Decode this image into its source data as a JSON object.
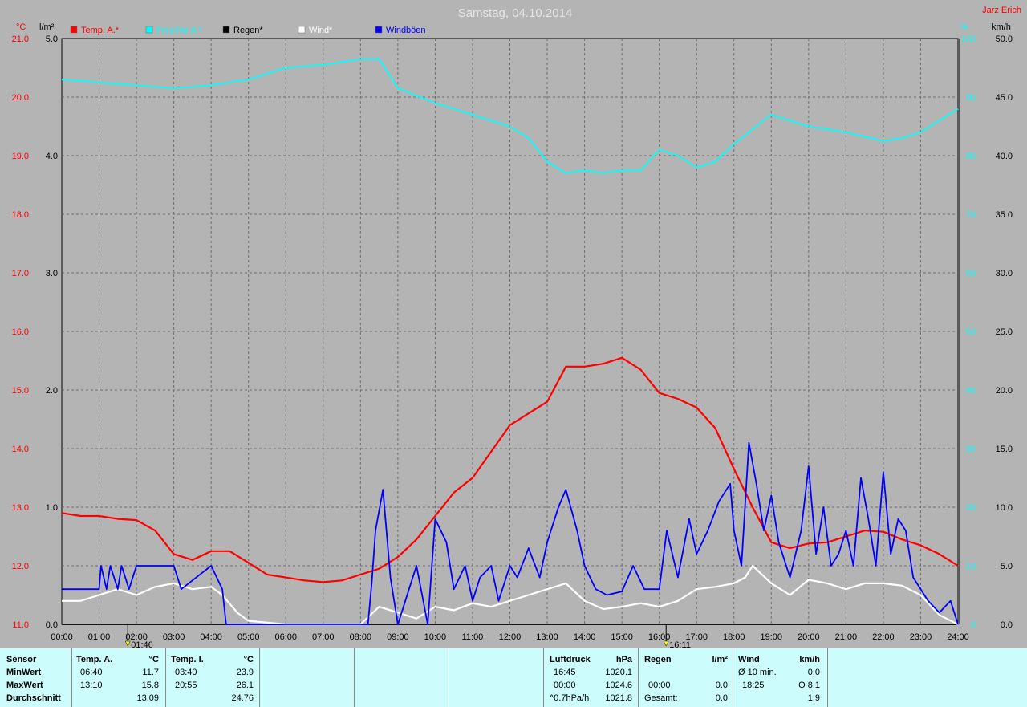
{
  "title": "Samstag, 04.10.2014",
  "author": "Jarz Erich",
  "axes": {
    "temp_unit": "°C",
    "rain_unit": "l/m²",
    "humidity_unit": "%",
    "wind_unit": "km/h",
    "temp_ticks": [
      "21.0",
      "20.0",
      "19.0",
      "18.0",
      "17.0",
      "16.0",
      "15.0",
      "14.0",
      "13.0",
      "12.0",
      "11.0"
    ],
    "rain_ticks": [
      "5.0",
      "4.0",
      "3.0",
      "2.0",
      "1.0",
      "0.0"
    ],
    "humidity_ticks": [
      "100",
      "90",
      "80",
      "70",
      "60",
      "50",
      "40",
      "30",
      "20",
      "10",
      "0"
    ],
    "wind_ticks": [
      "50.0",
      "45.0",
      "40.0",
      "35.0",
      "30.0",
      "25.0",
      "20.0",
      "15.0",
      "10.0",
      "5.0",
      "0.0"
    ],
    "time_ticks": [
      "00:00",
      "01:00",
      "02:00",
      "03:00",
      "04:00",
      "05:00",
      "06:00",
      "07:00",
      "08:00",
      "09:00",
      "10:00",
      "11:00",
      "12:00",
      "13:00",
      "14:00",
      "15:00",
      "16:00",
      "17:00",
      "18:00",
      "19:00",
      "20:00",
      "21:00",
      "22:00",
      "23:00",
      "24:00"
    ],
    "markers": [
      {
        "time": "01:46"
      },
      {
        "time": "16:11"
      }
    ]
  },
  "legend": [
    {
      "label": "Temp. A.*",
      "color": "#ff0000"
    },
    {
      "label": "Feuchte A.*",
      "color": "#00ffff"
    },
    {
      "label": "Regen*",
      "color": "#000000"
    },
    {
      "label": "Wind*",
      "color": "#ffffff"
    },
    {
      "label": "Windböen",
      "color": "#0000ff"
    }
  ],
  "chart_data": {
    "type": "line",
    "title": "Samstag, 04.10.2014",
    "x_range_hours": [
      0,
      24
    ],
    "ylim_temp": [
      11,
      21
    ],
    "ylim_rain": [
      0,
      5
    ],
    "ylim_humidity": [
      0,
      100
    ],
    "ylim_wind": [
      0,
      50
    ],
    "grid": true,
    "legend_position": "top",
    "series": [
      {
        "name": "Temp. A.*",
        "color": "#ff0000",
        "axis": "temp",
        "x": [
          0,
          0.5,
          1,
          1.5,
          2,
          2.5,
          3,
          3.5,
          4,
          4.5,
          5,
          5.5,
          6,
          6.5,
          7,
          7.5,
          8,
          8.5,
          9,
          9.5,
          10,
          10.5,
          11,
          11.5,
          12,
          12.5,
          13,
          13.5,
          14,
          14.5,
          15,
          15.5,
          16,
          16.5,
          17,
          17.5,
          18,
          18.5,
          19,
          19.5,
          20,
          20.5,
          21,
          21.5,
          22,
          22.5,
          23,
          23.5,
          24
        ],
        "y": [
          12.9,
          12.85,
          12.85,
          12.8,
          12.78,
          12.6,
          12.2,
          12.1,
          12.25,
          12.25,
          12.05,
          11.85,
          11.8,
          11.75,
          11.72,
          11.75,
          11.85,
          11.95,
          12.15,
          12.45,
          12.85,
          13.25,
          13.5,
          13.95,
          14.4,
          14.6,
          14.8,
          15.4,
          15.4,
          15.45,
          15.55,
          15.35,
          14.95,
          14.85,
          14.7,
          14.35,
          13.65,
          13.0,
          12.4,
          12.3,
          12.38,
          12.4,
          12.5,
          12.6,
          12.58,
          12.45,
          12.35,
          12.2,
          12.0
        ]
      },
      {
        "name": "Feuchte A.*",
        "color": "#00ffff",
        "axis": "humidity",
        "x": [
          0,
          1,
          2,
          3,
          4,
          5,
          6,
          7,
          8,
          8.5,
          9,
          10,
          11,
          12,
          12.5,
          13,
          13.5,
          14,
          14.5,
          15,
          15.5,
          16,
          16.5,
          17,
          17.5,
          18,
          19,
          20,
          21,
          22,
          22.5,
          23,
          24
        ],
        "y": [
          93,
          92.5,
          92,
          91.5,
          92,
          93,
          95,
          95.5,
          96.5,
          96.5,
          91.5,
          89,
          87,
          85,
          83,
          79,
          77,
          77.5,
          77,
          77.5,
          77.5,
          81,
          80,
          78,
          79,
          82,
          87,
          85,
          84,
          82.5,
          83,
          84,
          88
        ]
      },
      {
        "name": "Regen*",
        "color": "#000000",
        "axis": "rain",
        "x": [
          0,
          24
        ],
        "y": [
          0,
          0
        ]
      },
      {
        "name": "Wind*",
        "color": "#ffffff",
        "axis": "wind",
        "x": [
          0,
          0.5,
          1,
          1.5,
          2,
          2.5,
          3,
          3.5,
          4,
          4.3,
          4.7,
          5,
          6,
          7,
          8,
          8.5,
          9,
          9.5,
          10,
          10.5,
          11,
          11.5,
          12,
          12.5,
          13,
          13.5,
          14,
          14.5,
          15,
          15.5,
          16,
          16.5,
          17,
          17.5,
          18,
          18.3,
          18.5,
          19,
          19.5,
          20,
          20.5,
          21,
          21.5,
          22,
          22.5,
          23,
          23.5,
          24
        ],
        "y": [
          2,
          2,
          2.5,
          3,
          2.5,
          3.2,
          3.5,
          3,
          3.2,
          2.5,
          1,
          0.3,
          0,
          0,
          0,
          1.5,
          1,
          0.5,
          1.5,
          1.2,
          1.8,
          1.5,
          2,
          2.5,
          3,
          3.5,
          2,
          1.3,
          1.5,
          1.8,
          1.5,
          2,
          3,
          3.2,
          3.5,
          4,
          5,
          3.5,
          2.5,
          3.8,
          3.5,
          3,
          3.5,
          3.5,
          3.3,
          2.5,
          0.8,
          0
        ]
      },
      {
        "name": "Windböen",
        "color": "#0000ff",
        "axis": "wind",
        "x": [
          0,
          1,
          1.05,
          1.2,
          1.3,
          1.5,
          1.6,
          1.8,
          2,
          3,
          3.2,
          4,
          4.3,
          4.4,
          4.5,
          8.2,
          8.3,
          8.4,
          8.6,
          8.8,
          9,
          9.3,
          9.5,
          9.8,
          10,
          10.3,
          10.5,
          10.8,
          11,
          11.2,
          11.5,
          11.7,
          12,
          12.2,
          12.5,
          12.8,
          13,
          13.3,
          13.5,
          13.8,
          14,
          14.3,
          14.6,
          15,
          15.3,
          15.6,
          16,
          16.2,
          16.5,
          16.8,
          17,
          17.3,
          17.6,
          17.9,
          18,
          18.2,
          18.4,
          18.6,
          18.8,
          19,
          19.2,
          19.5,
          19.8,
          20,
          20.2,
          20.4,
          20.6,
          20.8,
          21,
          21.2,
          21.4,
          21.6,
          21.8,
          22,
          22.2,
          22.4,
          22.6,
          22.8,
          23,
          23.2,
          23.5,
          23.8,
          24
        ],
        "y": [
          3,
          3,
          5,
          3,
          5,
          3,
          5,
          3,
          5,
          5,
          3,
          5,
          3,
          0,
          0,
          0,
          3.5,
          8,
          11.5,
          4,
          0,
          3,
          5,
          0,
          9,
          7,
          3,
          5,
          2,
          4,
          5,
          2,
          5,
          4,
          6.5,
          4,
          7,
          10,
          11.5,
          8,
          5,
          3,
          2.5,
          2.8,
          5,
          3,
          3,
          8,
          4,
          9,
          6,
          8,
          10.5,
          12,
          8,
          5,
          15.5,
          12,
          8,
          11,
          7,
          4,
          8,
          13.5,
          6,
          10,
          5,
          6,
          8,
          5,
          12.5,
          9,
          5,
          13,
          6,
          9,
          8,
          4,
          3,
          2,
          1,
          2,
          0
        ]
      }
    ]
  }
}
